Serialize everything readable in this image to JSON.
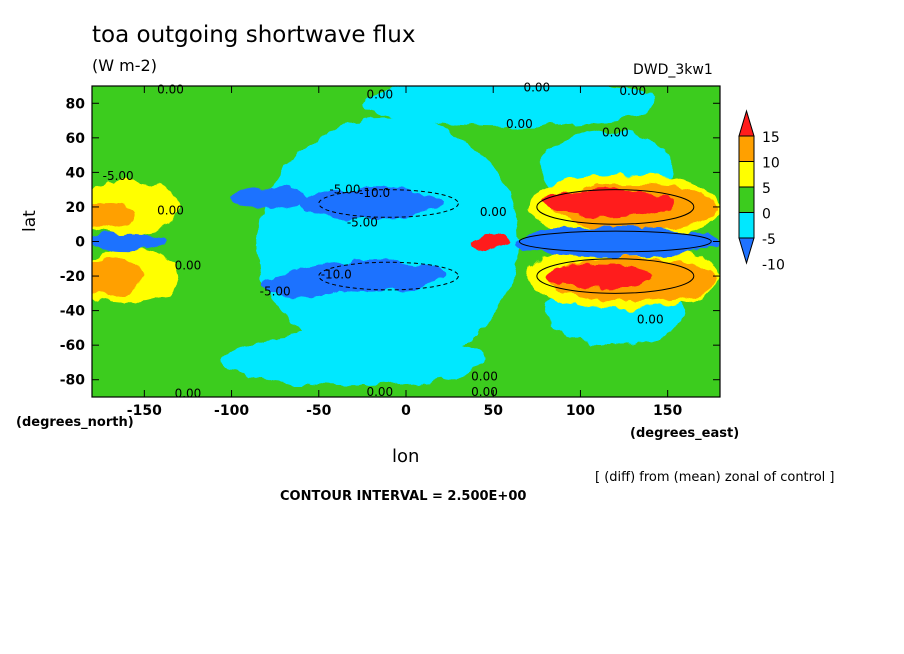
{
  "title": "toa outgoing shortwave flux",
  "units": "(W m-2)",
  "model": "DWD_3kw1",
  "note": "[ (diff) from (mean) zonal of control ]",
  "contour_interval": "CONTOUR INTERVAL = 2.500E+00",
  "chart_data": {
    "type": "heatmap",
    "title": "toa outgoing shortwave flux",
    "subtitle": "(W m-2)",
    "xlabel": "lon",
    "ylabel": "lat",
    "x_unit_label": "(degrees_east)",
    "y_unit_label": "(degrees_north)",
    "xlim": [
      -180,
      180
    ],
    "ylim": [
      -90,
      90
    ],
    "x_ticks": [
      -150,
      -100,
      -50,
      0,
      50,
      100,
      150
    ],
    "y_ticks": [
      80,
      60,
      40,
      20,
      0,
      -20,
      -40,
      -60,
      -80
    ],
    "x_tick_labels": [
      "-150",
      "-100",
      "-50",
      "0",
      "50",
      "100",
      "150"
    ],
    "y_tick_labels": [
      "80",
      "60",
      "40",
      "20",
      "0",
      "-20",
      "-40",
      "-60",
      "-80"
    ],
    "colorbar": {
      "levels": [
        -10,
        -5,
        0,
        5,
        10,
        15
      ],
      "labels": [
        "15",
        "10",
        "5",
        "0",
        "-5",
        "-10"
      ],
      "colors": [
        "#1f72ff",
        "#00e8ff",
        "#3ccc1e",
        "#ffff00",
        "#ffa000",
        "#ff1c1c"
      ]
    },
    "contour_labels": [
      {
        "text": "0.00",
        "lon": -135,
        "lat": 88
      },
      {
        "text": "0.00",
        "lon": -15,
        "lat": 85
      },
      {
        "text": "0.00",
        "lon": 75,
        "lat": 89
      },
      {
        "text": "0.00",
        "lon": 130,
        "lat": 87
      },
      {
        "text": "0.00",
        "lon": 65,
        "lat": 68
      },
      {
        "text": "0.00",
        "lon": 120,
        "lat": 63
      },
      {
        "text": "-5.00",
        "lon": -165,
        "lat": 38
      },
      {
        "text": "0.00",
        "lon": -135,
        "lat": 18
      },
      {
        "text": "-5.00",
        "lon": -35,
        "lat": 30
      },
      {
        "text": "-10.0",
        "lon": -18,
        "lat": 28
      },
      {
        "text": "-5.00",
        "lon": -25,
        "lat": 11
      },
      {
        "text": "0.00",
        "lon": 50,
        "lat": 17
      },
      {
        "text": "0.00",
        "lon": -125,
        "lat": -14
      },
      {
        "text": "-10.0",
        "lon": -40,
        "lat": -19
      },
      {
        "text": "-5.00",
        "lon": -75,
        "lat": -29
      },
      {
        "text": "0.00",
        "lon": 140,
        "lat": -45
      },
      {
        "text": "0.00",
        "lon": 45,
        "lat": -78
      },
      {
        "text": "0.00",
        "lon": -125,
        "lat": -88
      },
      {
        "text": "0.00",
        "lon": -15,
        "lat": -87
      },
      {
        "text": "0.00",
        "lon": 45,
        "lat": -87
      }
    ]
  }
}
